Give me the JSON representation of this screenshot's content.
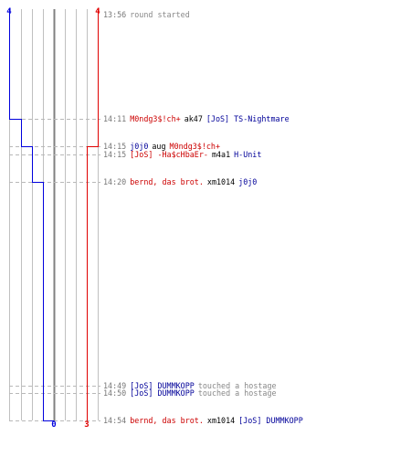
{
  "theme": {
    "team_red_color": "#e00000",
    "team_blue_color": "#0000dd",
    "red_text_color": "#cc0000",
    "blue_text_color": "#000099",
    "grid_color": "#c0c0c0",
    "center_line_color": "#808080"
  },
  "scores": {
    "blue_start": "4",
    "red_start": "4",
    "blue_end": "0",
    "red_end": "3"
  },
  "events": [
    {
      "time": "13:56",
      "parts": [
        {
          "text": "round started",
          "team": "grey"
        }
      ]
    },
    {
      "time": "14:11",
      "parts": [
        {
          "text": "M0ndg3$!ch+",
          "team": "red"
        },
        {
          "text": "ak47",
          "team": "plain"
        },
        {
          "text": "[JoS] TS-Nightmare",
          "team": "blue"
        }
      ]
    },
    {
      "time": "14:15",
      "parts": [
        {
          "text": "j0j0",
          "team": "blue"
        },
        {
          "text": "aug",
          "team": "plain"
        },
        {
          "text": "M0ndg3$!ch+",
          "team": "red"
        }
      ]
    },
    {
      "time": "14:15",
      "parts": [
        {
          "text": "[JoS] -Ha$cHbaEr-",
          "team": "red"
        },
        {
          "text": "m4a1",
          "team": "plain"
        },
        {
          "text": "H-Unit",
          "team": "blue"
        }
      ]
    },
    {
      "time": "14:20",
      "parts": [
        {
          "text": "bernd, das brot.",
          "team": "red"
        },
        {
          "text": "xm1014",
          "team": "plain"
        },
        {
          "text": "j0j0",
          "team": "blue"
        }
      ]
    },
    {
      "time": "14:49",
      "parts": [
        {
          "text": "[JoS] DUMMKOPP",
          "team": "blue"
        },
        {
          "text": "touched a hostage",
          "team": "grey"
        }
      ]
    },
    {
      "time": "14:50",
      "parts": [
        {
          "text": "[JoS] DUMMKOPP",
          "team": "blue"
        },
        {
          "text": "touched a hostage",
          "team": "grey"
        }
      ]
    },
    {
      "time": "14:54",
      "parts": [
        {
          "text": "bernd, das brot.",
          "team": "red"
        },
        {
          "text": "xm1014",
          "team": "plain"
        },
        {
          "text": "[JoS] DUMMKOPP",
          "team": "blue"
        }
      ]
    }
  ]
}
